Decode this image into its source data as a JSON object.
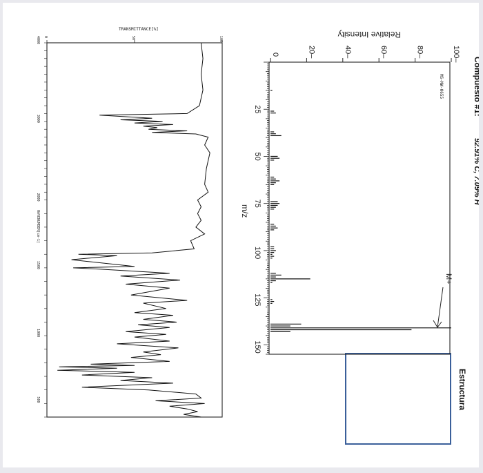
{
  "page": {
    "compound_title": "Compuesto #1:",
    "composition": "92.91% C, 7.09% H",
    "structure_label": "Estructura"
  },
  "chart_data": [
    {
      "type": "bar",
      "name": "mass-spectrum",
      "ylabel": "Relative Intensity",
      "xlabel": "m/z",
      "xlim": [
        0,
        155
      ],
      "ylim": [
        0,
        100
      ],
      "x_ticks": [
        25,
        50,
        75,
        100,
        125,
        150
      ],
      "y_ticks": [
        0,
        20,
        40,
        60,
        80,
        100
      ],
      "code_label": "MS-NW-0655",
      "annotation": "M+",
      "orientation": "rotated 90° clockwise",
      "x": [
        15,
        26,
        27,
        37,
        38,
        39,
        50,
        51,
        52,
        61,
        62,
        63,
        64,
        65,
        74,
        75,
        76,
        77,
        78,
        86,
        87,
        88,
        89,
        98,
        99,
        100,
        101,
        102,
        103,
        104,
        112,
        113,
        114,
        115,
        116,
        117,
        126,
        127,
        128,
        139,
        140,
        141,
        142,
        143
      ],
      "values": [
        1,
        2,
        3,
        2,
        3,
        6,
        4,
        5,
        2,
        2,
        3,
        5,
        3,
        2,
        4,
        5,
        4,
        3,
        2,
        2,
        3,
        4,
        2,
        2,
        2,
        3,
        2,
        1,
        2,
        1,
        3,
        6,
        3,
        22,
        3,
        1,
        1,
        2,
        1,
        17,
        11,
        100,
        78,
        11
      ]
    },
    {
      "type": "line",
      "name": "ir-spectrum",
      "title": "TRANSMITTANCE[%]",
      "xlabel": "HAVENUMBER[cm-1]",
      "ylim": [
        0,
        100
      ],
      "y_ticks": [
        0,
        50,
        100
      ],
      "x_ticks": [
        4000,
        3000,
        2000,
        1500,
        1000,
        500
      ],
      "orientation": "rotated 90° clockwise",
      "x": [
        4000,
        3800,
        3600,
        3400,
        3200,
        3100,
        3080,
        3060,
        3040,
        3020,
        3000,
        2980,
        2960,
        2940,
        2920,
        2900,
        2880,
        2860,
        2840,
        2800,
        2700,
        2600,
        2400,
        2200,
        2100,
        2000,
        1950,
        1900,
        1850,
        1800,
        1750,
        1700,
        1640,
        1610,
        1600,
        1590,
        1560,
        1510,
        1500,
        1490,
        1460,
        1440,
        1410,
        1380,
        1350,
        1300,
        1260,
        1240,
        1200,
        1170,
        1150,
        1120,
        1100,
        1080,
        1060,
        1030,
        1010,
        990,
        960,
        940,
        910,
        880,
        860,
        840,
        810,
        790,
        780,
        770,
        760,
        745,
        730,
        710,
        690,
        670,
        650,
        620,
        600,
        570,
        540,
        520,
        500,
        480,
        460,
        440,
        420,
        400
      ],
      "values": [
        88,
        89,
        88,
        89,
        87,
        80,
        30,
        45,
        60,
        42,
        66,
        50,
        72,
        55,
        63,
        58,
        80,
        60,
        85,
        92,
        90,
        93,
        91,
        90,
        92,
        86,
        88,
        86,
        88,
        85,
        90,
        82,
        84,
        60,
        18,
        40,
        14,
        50,
        15,
        30,
        70,
        42,
        76,
        45,
        70,
        48,
        80,
        55,
        68,
        50,
        72,
        55,
        74,
        52,
        70,
        45,
        68,
        50,
        70,
        40,
        75,
        55,
        65,
        48,
        70,
        25,
        50,
        7,
        40,
        6,
        50,
        20,
        60,
        42,
        72,
        20,
        58,
        85,
        88,
        62,
        90,
        70,
        80,
        86,
        78,
        88
      ]
    }
  ]
}
